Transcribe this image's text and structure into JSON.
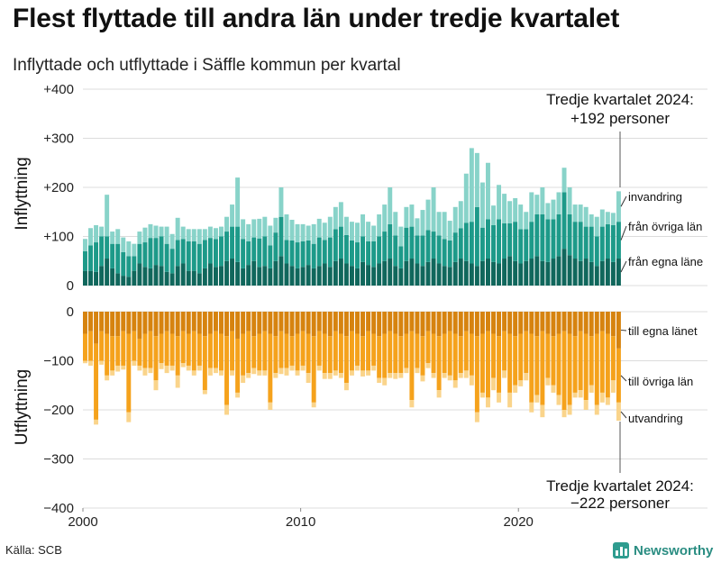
{
  "title": "Flest flyttade till andra län under tredje kvartalet",
  "subtitle": "Inflyttade och utflyttade i Säffle kommun per kvartal",
  "source": "Källa: SCB",
  "brand": "Newsworthy",
  "colors": {
    "in_local": "#10675c",
    "in_other": "#1d9a89",
    "in_immig": "#88d3c9",
    "out_local": "#d6830f",
    "out_other": "#f5a21c",
    "out_emig": "#fad48b"
  },
  "chart_data": {
    "type": "bar",
    "stacked": true,
    "x_start": "2000 Q1",
    "x_end": "2024 Q3",
    "x_ticks": [
      "2000",
      "2010",
      "2020"
    ],
    "top_panel": {
      "ylabel": "Inflyttning",
      "ylim": [
        0,
        400
      ],
      "y_ticks": [
        "+400",
        "+300",
        "+200",
        "+100",
        "0"
      ],
      "series": [
        {
          "name": "från egna läne",
          "values": [
            30,
            30,
            28,
            40,
            55,
            35,
            25,
            20,
            18,
            30,
            45,
            38,
            35,
            42,
            40,
            28,
            25,
            40,
            45,
            30,
            30,
            25,
            35,
            45,
            38,
            40,
            50,
            55,
            48,
            35,
            42,
            50,
            38,
            40,
            35,
            50,
            60,
            45,
            40,
            35,
            38,
            42,
            35,
            40,
            45,
            38,
            50,
            55,
            45,
            40,
            35,
            48,
            42,
            38,
            45,
            50,
            55,
            40,
            35,
            50,
            55,
            45,
            40,
            48,
            55,
            45,
            40,
            38,
            48,
            55,
            50,
            45,
            40,
            50,
            55,
            48,
            45,
            55,
            60,
            50,
            45,
            50,
            55,
            60,
            50,
            48,
            55,
            60,
            75,
            62,
            55,
            50,
            55,
            48,
            40,
            50,
            55,
            48,
            55
          ]
        },
        {
          "name": "från övriga län",
          "values": [
            40,
            52,
            60,
            60,
            45,
            50,
            60,
            48,
            42,
            30,
            40,
            50,
            62,
            55,
            60,
            57,
            50,
            53,
            50,
            60,
            60,
            60,
            58,
            52,
            57,
            60,
            60,
            65,
            72,
            60,
            48,
            48,
            58,
            60,
            47,
            58,
            80,
            48,
            52,
            53,
            52,
            50,
            50,
            58,
            48,
            60,
            65,
            65,
            58,
            52,
            53,
            52,
            48,
            52,
            55,
            60,
            70,
            62,
            45,
            68,
            65,
            57,
            62,
            65,
            55,
            57,
            55,
            54,
            60,
            62,
            78,
            85,
            120,
            68,
            80,
            75,
            90,
            72,
            67,
            80,
            70,
            65,
            75,
            85,
            95,
            87,
            80,
            85,
            115,
            83,
            75,
            80,
            65,
            72,
            60,
            70,
            70,
            75,
            75
          ]
        },
        {
          "name": "invandring",
          "values": [
            25,
            35,
            35,
            20,
            85,
            25,
            30,
            30,
            30,
            25,
            25,
            30,
            28,
            25,
            20,
            35,
            30,
            45,
            25,
            25,
            25,
            30,
            22,
            23,
            22,
            20,
            30,
            45,
            100,
            40,
            35,
            37,
            40,
            40,
            40,
            30,
            60,
            52,
            42,
            37,
            35,
            30,
            40,
            38,
            35,
            42,
            45,
            50,
            37,
            38,
            40,
            45,
            40,
            32,
            45,
            55,
            75,
            48,
            40,
            42,
            45,
            35,
            52,
            62,
            90,
            48,
            55,
            40,
            52,
            55,
            100,
            150,
            110,
            92,
            115,
            40,
            70,
            60,
            45,
            48,
            50,
            35,
            60,
            40,
            55,
            33,
            40,
            45,
            50,
            55,
            35,
            35,
            40,
            25,
            40,
            35,
            25,
            25,
            62
          ]
        }
      ]
    },
    "bottom_panel": {
      "ylabel": "Utflyttning",
      "ylim": [
        -400,
        0
      ],
      "y_ticks": [
        "0",
        "−100",
        "−200",
        "−300",
        "−400"
      ],
      "series": [
        {
          "name": "till egna länet",
          "values": [
            -45,
            -40,
            -65,
            -40,
            -45,
            -50,
            -50,
            -40,
            -45,
            -40,
            -55,
            -45,
            -40,
            -50,
            -45,
            -40,
            -45,
            -50,
            -40,
            -45,
            -40,
            -45,
            -50,
            -45,
            -40,
            -45,
            -50,
            -40,
            -55,
            -45,
            -40,
            -50,
            -45,
            -40,
            -45,
            -50,
            -40,
            -45,
            -50,
            -45,
            -40,
            -45,
            -50,
            -40,
            -45,
            -50,
            -40,
            -45,
            -50,
            -40,
            -45,
            -50,
            -40,
            -45,
            -50,
            -45,
            -40,
            -45,
            -50,
            -45,
            -40,
            -45,
            -50,
            -40,
            -45,
            -50,
            -45,
            -40,
            -45,
            -50,
            -40,
            -45,
            -50,
            -45,
            -40,
            -45,
            -50,
            -40,
            -45,
            -50,
            -45,
            -40,
            -45,
            -50,
            -40,
            -45,
            -50,
            -45,
            -40,
            -45,
            -50,
            -40,
            -45,
            -50,
            -45,
            -40,
            -45,
            -50,
            -75
          ]
        },
        {
          "name": "till övriga län",
          "values": [
            -55,
            -60,
            -155,
            -60,
            -85,
            -70,
            -60,
            -70,
            -160,
            -60,
            -55,
            -70,
            -75,
            -90,
            -60,
            -70,
            -65,
            -80,
            -65,
            -65,
            -80,
            -65,
            -110,
            -70,
            -75,
            -75,
            -140,
            -80,
            -110,
            -85,
            -85,
            -65,
            -75,
            -80,
            -140,
            -75,
            -75,
            -70,
            -60,
            -75,
            -70,
            -80,
            -135,
            -70,
            -80,
            -75,
            -80,
            -80,
            -95,
            -80,
            -65,
            -70,
            -80,
            -65,
            -85,
            -90,
            -85,
            -80,
            -75,
            -70,
            -140,
            -70,
            -80,
            -65,
            -80,
            -110,
            -80,
            -90,
            -95,
            -75,
            -80,
            -85,
            -155,
            -120,
            -135,
            -90,
            -115,
            -80,
            -120,
            -100,
            -95,
            -85,
            -140,
            -120,
            -150,
            -90,
            -100,
            -125,
            -160,
            -145,
            -115,
            -120,
            -135,
            -100,
            -145,
            -125,
            -130,
            -90,
            -110
          ]
        },
        {
          "name": "utvandring",
          "values": [
            -5,
            -10,
            -10,
            -8,
            -10,
            -10,
            -12,
            -8,
            -20,
            -10,
            -10,
            -15,
            -10,
            -20,
            -12,
            -15,
            -10,
            -25,
            -8,
            -10,
            -10,
            -10,
            -8,
            -15,
            -10,
            -10,
            -20,
            -10,
            -10,
            -15,
            -10,
            -12,
            -10,
            -10,
            -15,
            -10,
            -12,
            -15,
            -10,
            -10,
            -10,
            -20,
            -10,
            -10,
            -12,
            -12,
            -10,
            -10,
            -15,
            -10,
            -10,
            -12,
            -10,
            -10,
            -10,
            -15,
            -10,
            -12,
            -10,
            -10,
            -15,
            -10,
            -12,
            -10,
            -10,
            -15,
            -10,
            -10,
            -15,
            -10,
            -15,
            -20,
            -20,
            -10,
            -20,
            -25,
            -20,
            -15,
            -30,
            -15,
            -12,
            -15,
            -20,
            -15,
            -25,
            -15,
            -15,
            -20,
            -15,
            -20,
            -10,
            -15,
            -20,
            -15,
            -20,
            -20,
            -15,
            -25,
            -37
          ]
        }
      ]
    },
    "annotations": {
      "top": [
        "Tredje kvartalet 2024:",
        "+192 personer"
      ],
      "bottom": [
        "Tredje kvartalet 2024:",
        "−222 personer"
      ]
    },
    "legend_placement": "right, end-of-series labels"
  }
}
